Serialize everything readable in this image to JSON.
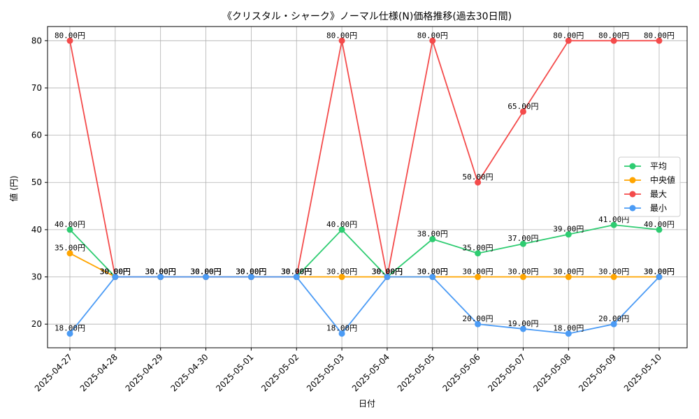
{
  "chart_data": {
    "type": "line",
    "title": "《クリスタル・シャーク》ノーマル仕様(N)価格推移(過去30日間)",
    "xlabel": "日付",
    "ylabel": "値 (円)",
    "ylim": [
      15,
      83
    ],
    "yticks": [
      20,
      30,
      40,
      50,
      60,
      70,
      80
    ],
    "grid": true,
    "legend_position": "right",
    "categories": [
      "2025-04-27",
      "2025-04-28",
      "2025-04-29",
      "2025-04-30",
      "2025-05-01",
      "2025-05-02",
      "2025-05-03",
      "2025-05-04",
      "2025-05-05",
      "2025-05-06",
      "2025-05-07",
      "2025-05-08",
      "2025-05-09",
      "2025-05-10"
    ],
    "series": [
      {
        "name": "平均",
        "color": "#2ecc71",
        "values": [
          40,
          30,
          30,
          30,
          30,
          30,
          40,
          30,
          38,
          35,
          37,
          39,
          41,
          40
        ]
      },
      {
        "name": "中央値",
        "color": "#ffa500",
        "values": [
          35,
          30,
          30,
          30,
          30,
          30,
          30,
          30,
          30,
          30,
          30,
          30,
          30,
          30
        ]
      },
      {
        "name": "最大",
        "color": "#f44b4b",
        "values": [
          80,
          30,
          30,
          30,
          30,
          30,
          80,
          30,
          80,
          50,
          65,
          80,
          80,
          80
        ]
      },
      {
        "name": "最小",
        "color": "#4b9bf5",
        "values": [
          18,
          30,
          30,
          30,
          30,
          30,
          18,
          30,
          30,
          20,
          19,
          18,
          20,
          30
        ]
      }
    ],
    "value_suffix": "円",
    "value_decimals": 2
  }
}
